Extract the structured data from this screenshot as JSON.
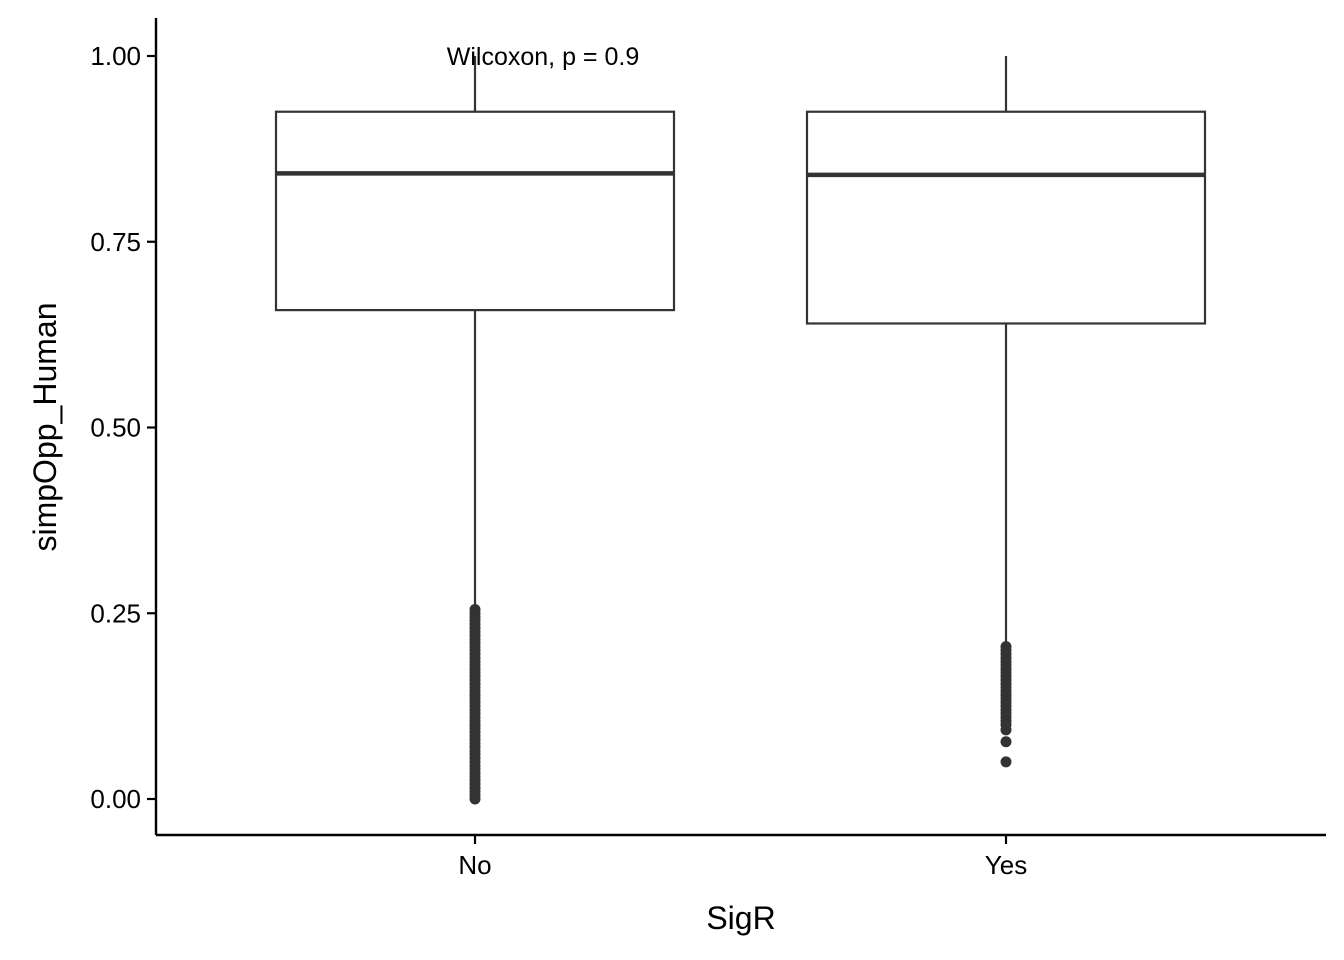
{
  "chart_data": {
    "type": "boxplot",
    "title": "",
    "xlabel": "SigR",
    "ylabel": "simpOpp_Human",
    "ylim": [
      -0.05,
      1.05
    ],
    "yticks": [
      0.0,
      0.25,
      0.5,
      0.75,
      1.0
    ],
    "ytick_labels": [
      "0.00",
      "0.25",
      "0.50",
      "0.75",
      "1.00"
    ],
    "categories": [
      "No",
      "Yes"
    ],
    "boxes": [
      {
        "category": "No",
        "whisker_low": 0.26,
        "q1": 0.658,
        "median": 0.842,
        "q3": 0.925,
        "whisker_high": 1.0,
        "outliers": [
          0.255,
          0.25,
          0.245,
          0.24,
          0.235,
          0.23,
          0.225,
          0.22,
          0.215,
          0.21,
          0.205,
          0.2,
          0.195,
          0.19,
          0.185,
          0.18,
          0.175,
          0.17,
          0.165,
          0.16,
          0.155,
          0.15,
          0.145,
          0.14,
          0.135,
          0.13,
          0.125,
          0.12,
          0.115,
          0.11,
          0.105,
          0.1,
          0.095,
          0.09,
          0.085,
          0.08,
          0.075,
          0.07,
          0.065,
          0.06,
          0.055,
          0.05,
          0.045,
          0.04,
          0.035,
          0.03,
          0.025,
          0.02,
          0.015,
          0.01,
          0.005,
          0.0
        ]
      },
      {
        "category": "Yes",
        "whisker_low": 0.21,
        "q1": 0.64,
        "median": 0.84,
        "q3": 0.925,
        "whisker_high": 1.0,
        "outliers": [
          0.205,
          0.2,
          0.195,
          0.19,
          0.185,
          0.18,
          0.175,
          0.17,
          0.165,
          0.16,
          0.155,
          0.15,
          0.145,
          0.14,
          0.135,
          0.13,
          0.125,
          0.12,
          0.115,
          0.11,
          0.105,
          0.1,
          0.093,
          0.077,
          0.05
        ]
      }
    ],
    "annotation": "Wilcoxon, p = 0.9",
    "grid": false,
    "legend": "none",
    "colors": {
      "box_stroke": "#333333",
      "box_fill": "#ffffff",
      "axis": "#000000"
    }
  }
}
